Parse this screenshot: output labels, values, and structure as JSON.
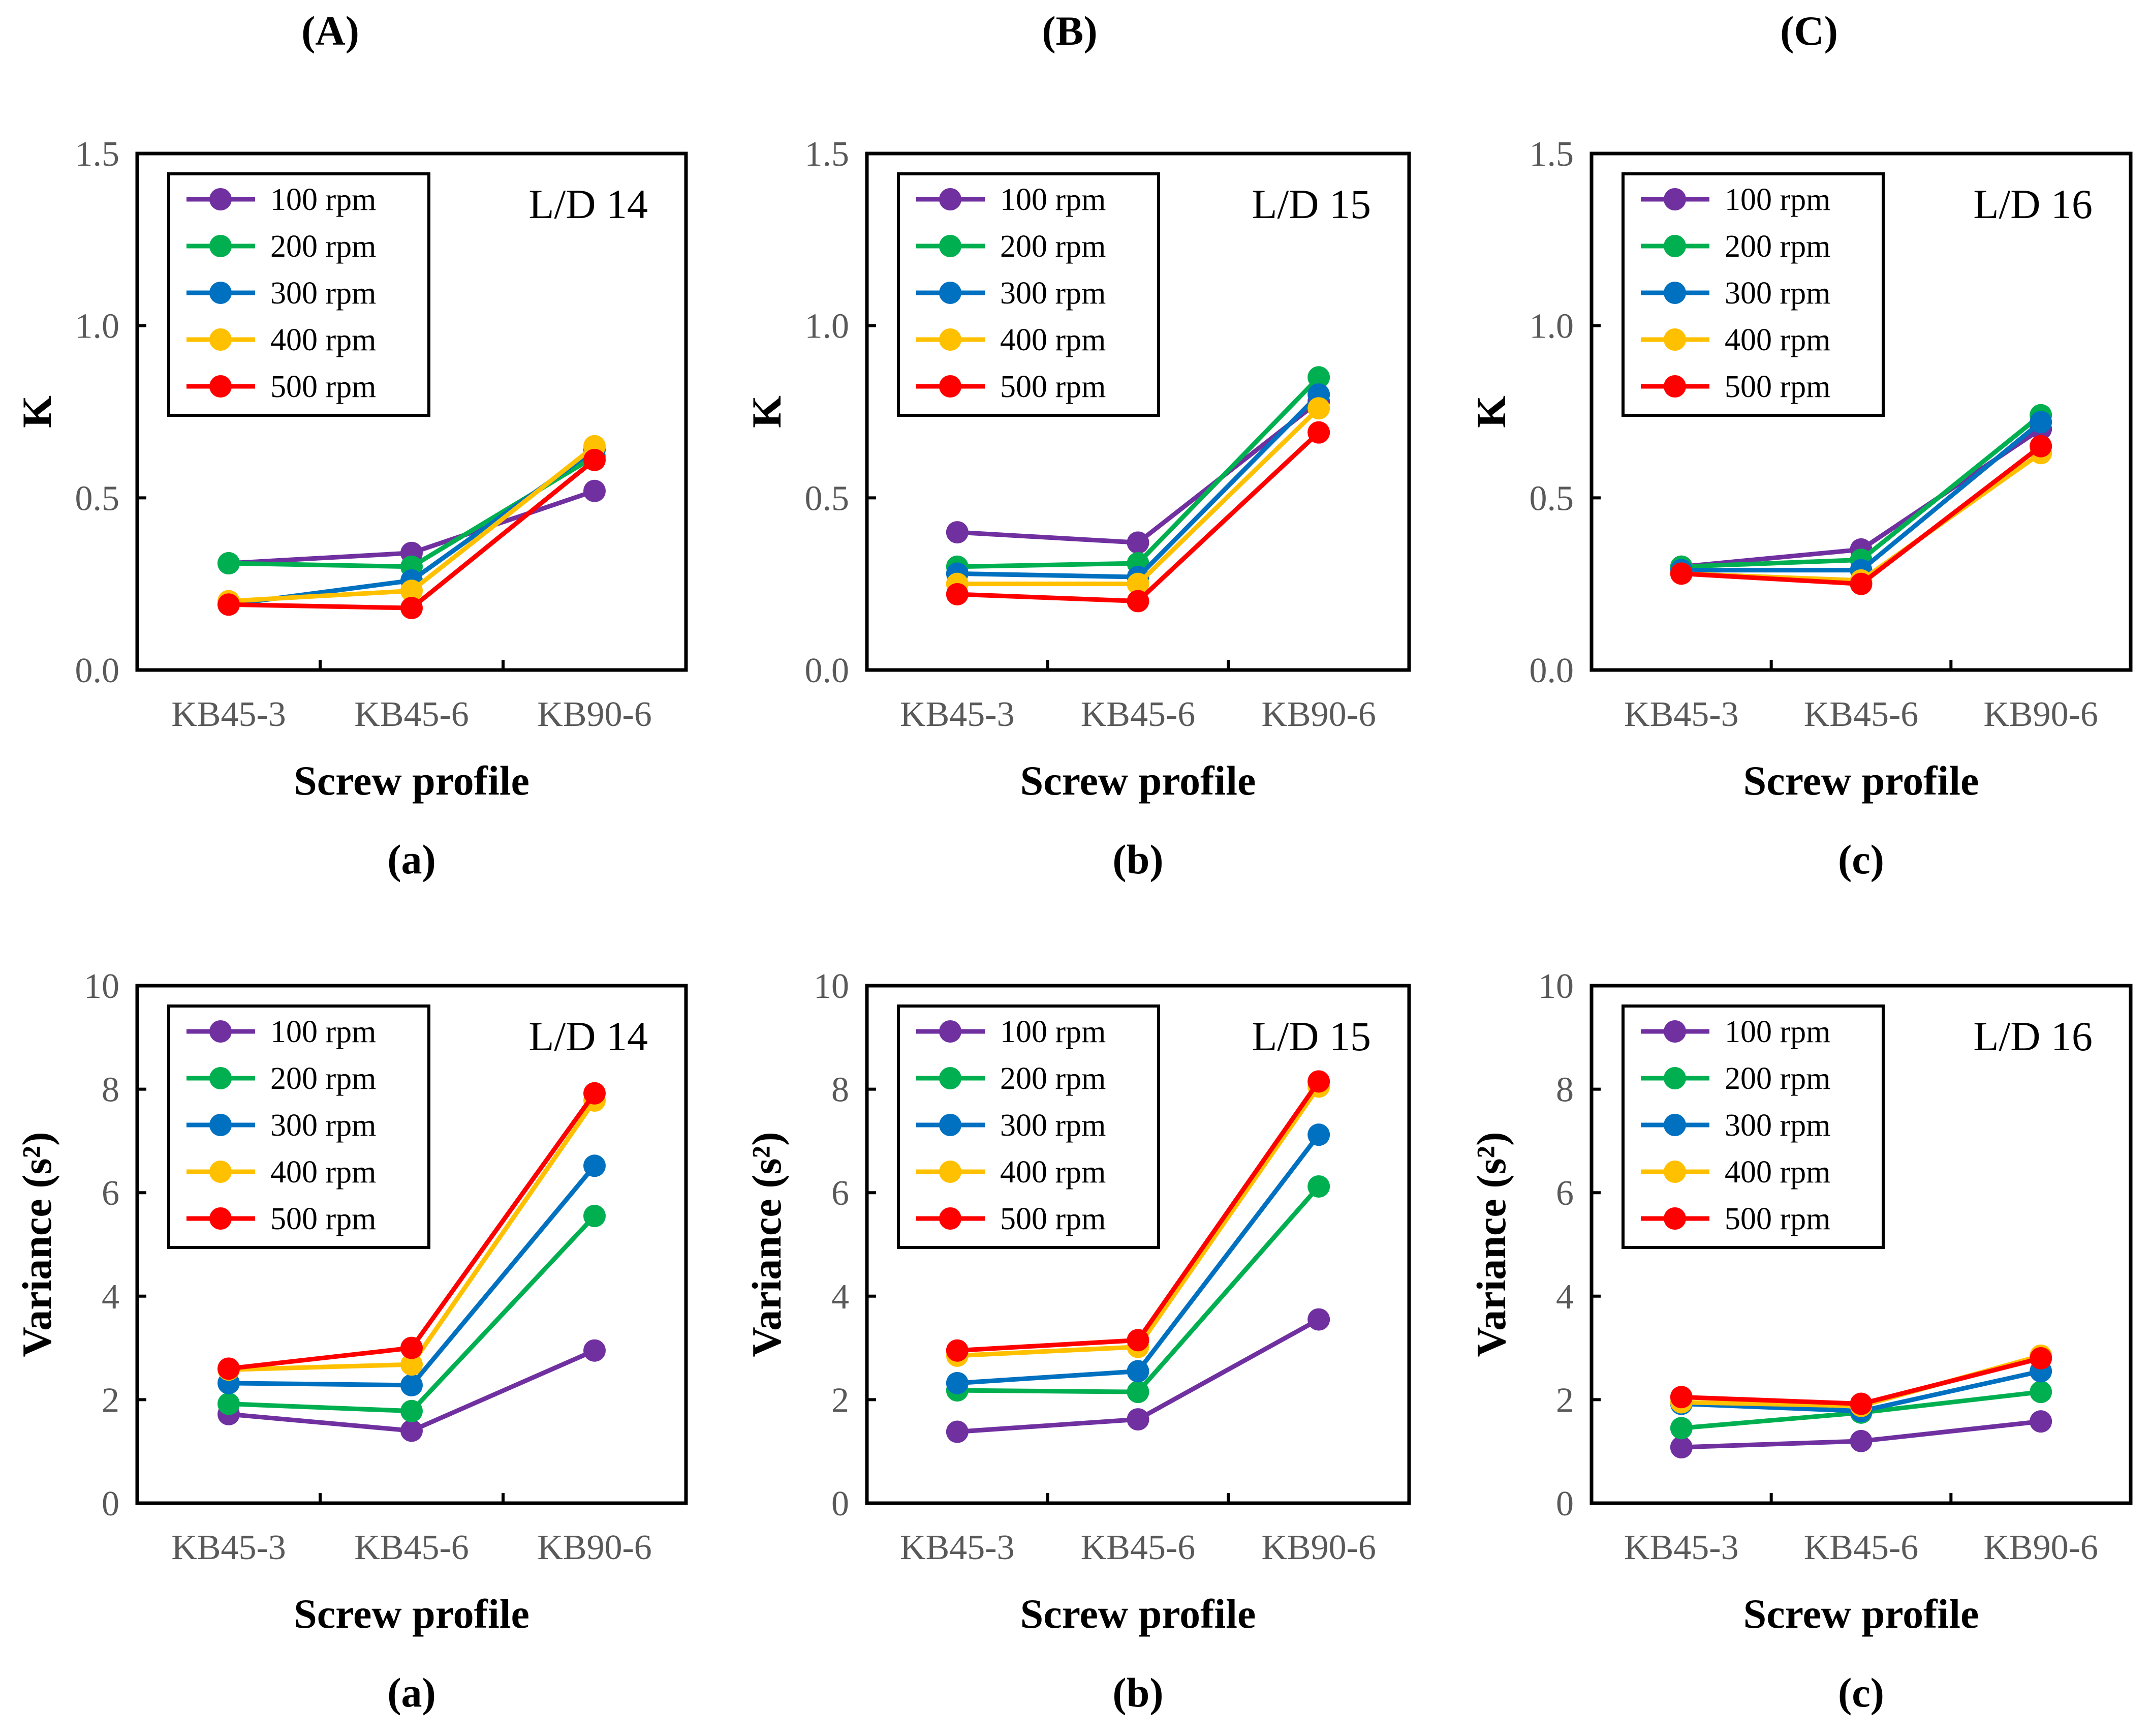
{
  "column_headers": [
    "(A)",
    "(B)",
    "(C)"
  ],
  "colors": {
    "100 rpm": "#7030A0",
    "200 rpm": "#00B050",
    "300 rpm": "#0070C0",
    "400 rpm": "#FFC000",
    "500 rpm": "#FF0000"
  },
  "chart_data": [
    {
      "type": "line",
      "row": "K",
      "panel_label": "(a)",
      "title": "L/D 14",
      "xlabel": "Screw profile",
      "ylabel": "K",
      "ylim": [
        0,
        1.5
      ],
      "yticks": [
        "0.0",
        "0.5",
        "1.0",
        "1.5"
      ],
      "categories": [
        "KB45-3",
        "KB45-6",
        "KB90-6"
      ],
      "legend": "top-left",
      "series": [
        {
          "name": "100 rpm",
          "values": [
            0.31,
            0.34,
            0.52
          ]
        },
        {
          "name": "200 rpm",
          "values": [
            0.31,
            0.3,
            0.62
          ]
        },
        {
          "name": "300 rpm",
          "values": [
            0.19,
            0.26,
            0.64
          ]
        },
        {
          "name": "400 rpm",
          "values": [
            0.2,
            0.23,
            0.65
          ]
        },
        {
          "name": "500 rpm",
          "values": [
            0.19,
            0.18,
            0.61
          ]
        }
      ]
    },
    {
      "type": "line",
      "row": "K",
      "panel_label": "(b)",
      "title": "L/D 15",
      "xlabel": "Screw profile",
      "ylabel": "K",
      "ylim": [
        0,
        1.5
      ],
      "yticks": [
        "0.0",
        "0.5",
        "1.0",
        "1.5"
      ],
      "categories": [
        "KB45-3",
        "KB45-6",
        "KB90-6"
      ],
      "legend": "top-left",
      "series": [
        {
          "name": "100 rpm",
          "values": [
            0.4,
            0.37,
            0.78
          ]
        },
        {
          "name": "200 rpm",
          "values": [
            0.3,
            0.31,
            0.85
          ]
        },
        {
          "name": "300 rpm",
          "values": [
            0.28,
            0.27,
            0.8
          ]
        },
        {
          "name": "400 rpm",
          "values": [
            0.25,
            0.25,
            0.76
          ]
        },
        {
          "name": "500 rpm",
          "values": [
            0.22,
            0.2,
            0.69
          ]
        }
      ]
    },
    {
      "type": "line",
      "row": "K",
      "panel_label": "(c)",
      "title": "L/D 16",
      "xlabel": "Screw profile",
      "ylabel": "K",
      "ylim": [
        0,
        1.5
      ],
      "yticks": [
        "0.0",
        "0.5",
        "1.0",
        "1.5"
      ],
      "categories": [
        "KB45-3",
        "KB45-6",
        "KB90-6"
      ],
      "legend": "top-left",
      "series": [
        {
          "name": "100 rpm",
          "values": [
            0.3,
            0.35,
            0.7
          ]
        },
        {
          "name": "200 rpm",
          "values": [
            0.3,
            0.32,
            0.74
          ]
        },
        {
          "name": "300 rpm",
          "values": [
            0.29,
            0.29,
            0.72
          ]
        },
        {
          "name": "400 rpm",
          "values": [
            0.28,
            0.26,
            0.63
          ]
        },
        {
          "name": "500 rpm",
          "values": [
            0.28,
            0.25,
            0.65
          ]
        }
      ]
    },
    {
      "type": "line",
      "row": "Variance",
      "panel_label": "(a)",
      "title": "L/D 14",
      "xlabel": "Screw profile",
      "ylabel": "Variance (s²)",
      "ylim": [
        0,
        10
      ],
      "yticks": [
        "0",
        "2",
        "4",
        "6",
        "8",
        "10"
      ],
      "categories": [
        "KB45-3",
        "KB45-6",
        "KB90-6"
      ],
      "legend": "top-left",
      "series": [
        {
          "name": "100 rpm",
          "values": [
            1.72,
            1.4,
            2.95
          ]
        },
        {
          "name": "200 rpm",
          "values": [
            1.92,
            1.78,
            5.55
          ]
        },
        {
          "name": "300 rpm",
          "values": [
            2.32,
            2.28,
            6.52
          ]
        },
        {
          "name": "400 rpm",
          "values": [
            2.58,
            2.68,
            7.78
          ]
        },
        {
          "name": "500 rpm",
          "values": [
            2.6,
            3.0,
            7.92
          ]
        }
      ]
    },
    {
      "type": "line",
      "row": "Variance",
      "panel_label": "(b)",
      "title": "L/D 15",
      "xlabel": "Screw profile",
      "ylabel": "Variance (s²)",
      "ylim": [
        0,
        10
      ],
      "yticks": [
        "0",
        "2",
        "4",
        "6",
        "8",
        "10"
      ],
      "categories": [
        "KB45-3",
        "KB45-6",
        "KB90-6"
      ],
      "legend": "top-left",
      "series": [
        {
          "name": "100 rpm",
          "values": [
            1.38,
            1.62,
            3.55
          ]
        },
        {
          "name": "200 rpm",
          "values": [
            2.18,
            2.15,
            6.12
          ]
        },
        {
          "name": "300 rpm",
          "values": [
            2.32,
            2.55,
            7.12
          ]
        },
        {
          "name": "400 rpm",
          "values": [
            2.85,
            3.02,
            8.05
          ]
        },
        {
          "name": "500 rpm",
          "values": [
            2.95,
            3.15,
            8.15
          ]
        }
      ]
    },
    {
      "type": "line",
      "row": "Variance",
      "panel_label": "(c)",
      "title": "L/D 16",
      "xlabel": "Screw profile",
      "ylabel": "Variance (s²)",
      "ylim": [
        0,
        10
      ],
      "yticks": [
        "0",
        "2",
        "4",
        "6",
        "8",
        "10"
      ],
      "categories": [
        "KB45-3",
        "KB45-6",
        "KB90-6"
      ],
      "legend": "top-left",
      "series": [
        {
          "name": "100 rpm",
          "values": [
            1.08,
            1.2,
            1.58
          ]
        },
        {
          "name": "200 rpm",
          "values": [
            1.45,
            1.75,
            2.15
          ]
        },
        {
          "name": "300 rpm",
          "values": [
            1.92,
            1.78,
            2.55
          ]
        },
        {
          "name": "400 rpm",
          "values": [
            1.95,
            1.88,
            2.85
          ]
        },
        {
          "name": "500 rpm",
          "values": [
            2.05,
            1.92,
            2.8
          ]
        }
      ]
    }
  ]
}
